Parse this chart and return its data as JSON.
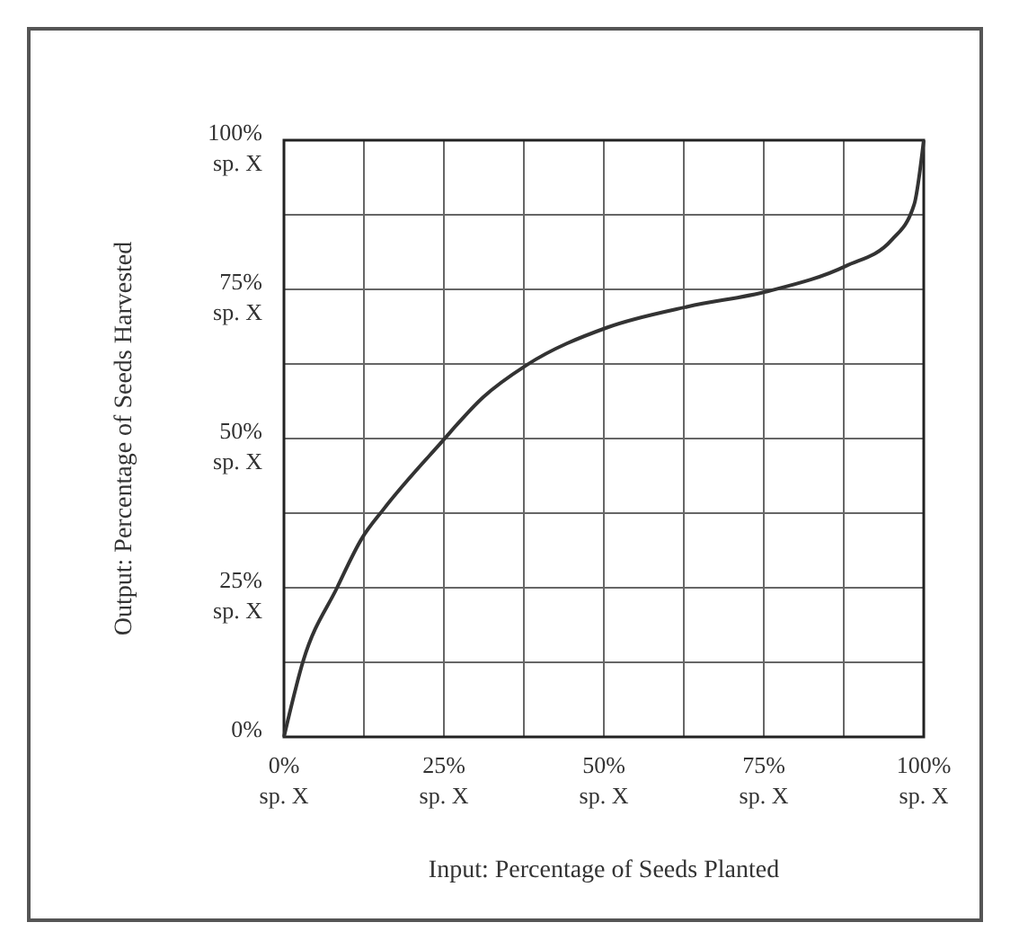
{
  "chart_data": {
    "type": "line",
    "xlabel": "Input: Percentage of Seeds Planted",
    "ylabel": "Output: Percentage of Seeds Harvested",
    "xlim": [
      0,
      100
    ],
    "ylim": [
      0,
      100
    ],
    "xticks": [
      {
        "value": 0,
        "label": "0%\nsp. X"
      },
      {
        "value": 12.5,
        "label": null
      },
      {
        "value": 25,
        "label": "25%\nsp. X"
      },
      {
        "value": 37.5,
        "label": null
      },
      {
        "value": 50,
        "label": "50%\nsp. X"
      },
      {
        "value": 62.5,
        "label": null
      },
      {
        "value": 75,
        "label": "75%\nsp. X"
      },
      {
        "value": 87.5,
        "label": null
      },
      {
        "value": 100,
        "label": "100%\nsp. X"
      }
    ],
    "yticks": [
      {
        "value": 0,
        "label": "0%"
      },
      {
        "value": 12.5,
        "label": null
      },
      {
        "value": 25,
        "label": "25%\nsp. X"
      },
      {
        "value": 37.5,
        "label": null
      },
      {
        "value": 50,
        "label": "50%\nsp. X"
      },
      {
        "value": 62.5,
        "label": null
      },
      {
        "value": 75,
        "label": "75%\nsp. X"
      },
      {
        "value": 87.5,
        "label": null
      },
      {
        "value": 100,
        "label": "100%\nsp. X"
      }
    ],
    "grid": true,
    "series": [
      {
        "color": "#333333",
        "x": [
          0,
          3,
          8.3,
          12.2,
          15.6,
          24.3,
          31.1,
          37.9,
          50.5,
          63.1,
          75.7,
          87.8,
          95,
          98.5,
          100
        ],
        "values": [
          0,
          12.7,
          25,
          33.3,
          38.2,
          49,
          56.9,
          62.3,
          68.6,
          72.1,
          74.7,
          78.9,
          83.3,
          89.2,
          100
        ]
      }
    ]
  }
}
